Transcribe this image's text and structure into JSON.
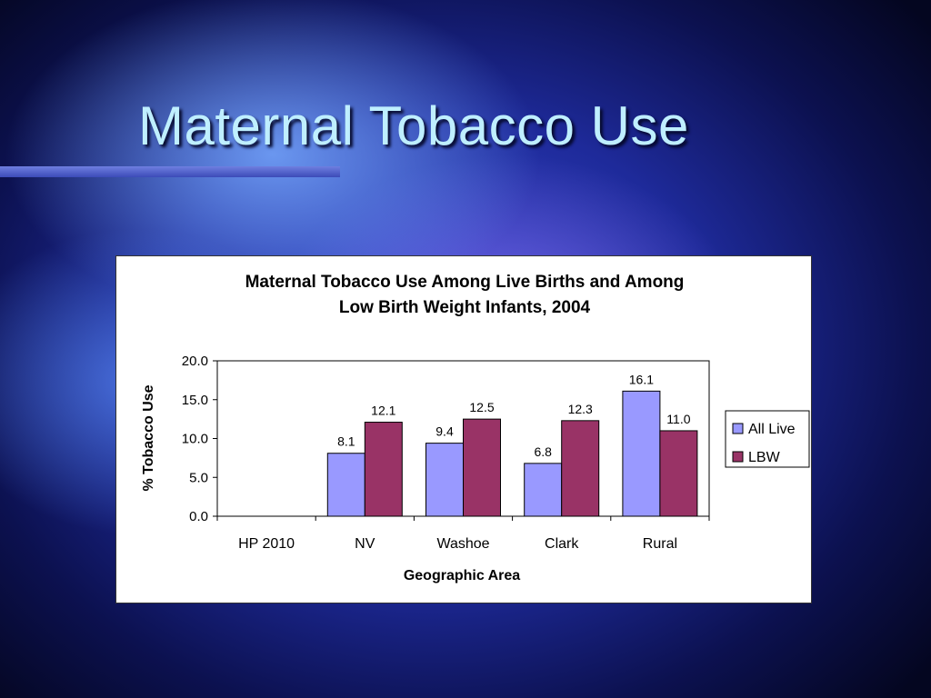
{
  "slide": {
    "title": "Maternal Tobacco Use",
    "title_color": "#bfefff"
  },
  "chart_data": {
    "type": "bar",
    "title_line1": "Maternal Tobacco Use Among Live Births and Among",
    "title_line2": "Low Birth Weight Infants, 2004",
    "xlabel": "Geographic Area",
    "ylabel": "% Tobacco Use",
    "ylim": [
      0,
      20
    ],
    "yticks": [
      "0.0",
      "5.0",
      "10.0",
      "15.0",
      "20.0"
    ],
    "categories": [
      "HP 2010",
      "NV",
      "Washoe",
      "Clark",
      "Rural"
    ],
    "series": [
      {
        "name": "All Live",
        "color": "#9999ff",
        "values": [
          null,
          8.1,
          9.4,
          6.8,
          16.1
        ],
        "labels": [
          "",
          "8.1",
          "9.4",
          "6.8",
          "16.1"
        ]
      },
      {
        "name": "LBW",
        "color": "#993366",
        "values": [
          null,
          12.1,
          12.5,
          12.3,
          11.0
        ],
        "labels": [
          "",
          "12.1",
          "12.5",
          "12.3",
          "11.0"
        ]
      }
    ],
    "grid": false,
    "legend_position": "right"
  }
}
